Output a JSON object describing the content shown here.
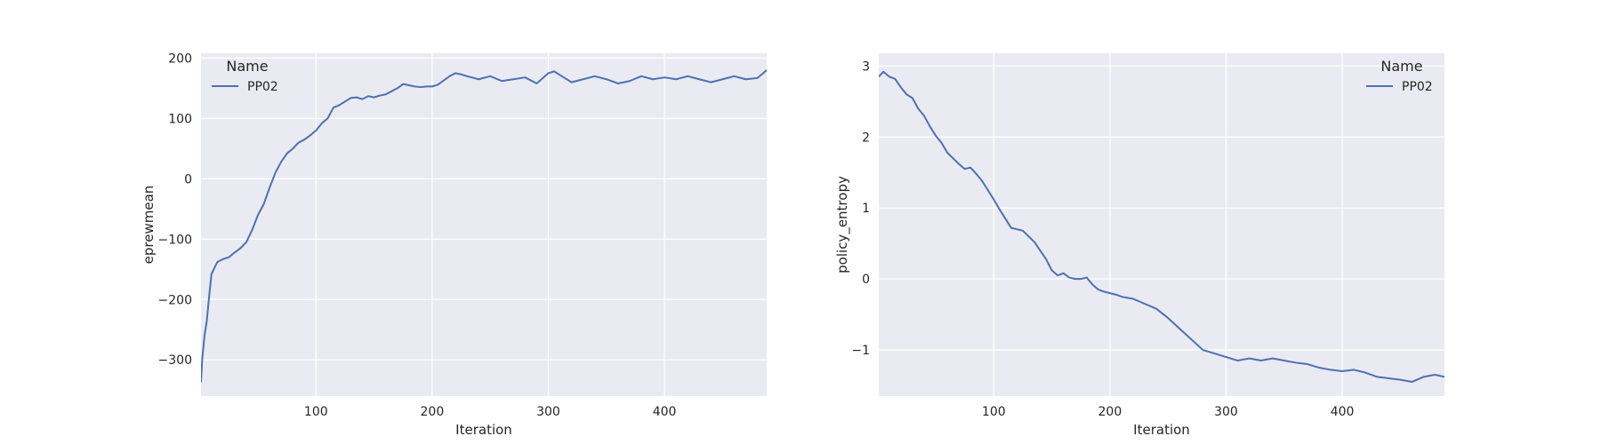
{
  "chart_data": [
    {
      "type": "line",
      "xlabel": "Iteration",
      "ylabel": "eprewmean",
      "xlim": [
        1,
        488
      ],
      "ylim": [
        -360,
        208
      ],
      "xticks": [
        100,
        200,
        300,
        400
      ],
      "yticks": [
        -300,
        -200,
        -100,
        0,
        100,
        200
      ],
      "grid": true,
      "legend": {
        "title": "Name",
        "placement": "top-left",
        "entries": [
          "PP02"
        ]
      },
      "series": [
        {
          "name": "PP02",
          "color": "#4c72b0",
          "x": [
            1,
            2,
            4,
            6,
            8,
            10,
            12,
            15,
            20,
            25,
            30,
            35,
            40,
            45,
            50,
            55,
            60,
            65,
            70,
            75,
            80,
            85,
            90,
            95,
            100,
            105,
            110,
            115,
            120,
            125,
            130,
            135,
            140,
            145,
            150,
            155,
            160,
            165,
            170,
            175,
            180,
            185,
            190,
            195,
            200,
            205,
            210,
            215,
            220,
            225,
            230,
            240,
            250,
            260,
            270,
            280,
            290,
            300,
            305,
            310,
            320,
            330,
            340,
            350,
            360,
            370,
            380,
            390,
            400,
            410,
            420,
            430,
            440,
            450,
            460,
            470,
            480,
            488
          ],
          "y": [
            -337,
            -300,
            -260,
            -235,
            -195,
            -158,
            -150,
            -138,
            -133,
            -130,
            -122,
            -115,
            -105,
            -85,
            -60,
            -42,
            -15,
            10,
            28,
            42,
            50,
            60,
            65,
            72,
            80,
            92,
            100,
            118,
            122,
            128,
            134,
            135,
            132,
            137,
            135,
            138,
            140,
            145,
            150,
            157,
            155,
            153,
            152,
            153,
            153,
            156,
            163,
            170,
            175,
            173,
            170,
            165,
            170,
            162,
            165,
            168,
            158,
            175,
            178,
            172,
            160,
            165,
            170,
            165,
            158,
            162,
            170,
            165,
            168,
            165,
            170,
            165,
            160,
            165,
            170,
            165,
            167,
            180
          ]
        }
      ]
    },
    {
      "type": "line",
      "xlabel": "Iteration",
      "ylabel": "policy_entropy",
      "xlim": [
        1,
        488
      ],
      "ylim": [
        -1.65,
        3.18
      ],
      "xticks": [
        100,
        200,
        300,
        400
      ],
      "yticks": [
        -1,
        0,
        1,
        2,
        3
      ],
      "grid": true,
      "legend": {
        "title": "Name",
        "placement": "top-right",
        "entries": [
          "PP02"
        ]
      },
      "series": [
        {
          "name": "PP02",
          "color": "#4c72b0",
          "x": [
            1,
            5,
            10,
            15,
            20,
            25,
            30,
            35,
            40,
            45,
            50,
            55,
            60,
            65,
            70,
            75,
            80,
            85,
            90,
            95,
            100,
            105,
            110,
            115,
            120,
            125,
            130,
            135,
            140,
            145,
            150,
            155,
            160,
            165,
            170,
            175,
            180,
            185,
            190,
            195,
            200,
            205,
            210,
            220,
            230,
            240,
            250,
            260,
            270,
            280,
            290,
            300,
            310,
            320,
            330,
            340,
            350,
            360,
            370,
            380,
            390,
            400,
            410,
            420,
            430,
            440,
            450,
            460,
            470,
            480,
            488
          ],
          "y": [
            2.85,
            2.92,
            2.85,
            2.82,
            2.7,
            2.6,
            2.55,
            2.4,
            2.3,
            2.15,
            2.02,
            1.92,
            1.78,
            1.7,
            1.62,
            1.55,
            1.57,
            1.48,
            1.38,
            1.25,
            1.12,
            0.98,
            0.85,
            0.72,
            0.7,
            0.68,
            0.6,
            0.52,
            0.4,
            0.28,
            0.12,
            0.05,
            0.08,
            0.02,
            0.0,
            0.0,
            0.02,
            -0.08,
            -0.15,
            -0.18,
            -0.2,
            -0.22,
            -0.25,
            -0.28,
            -0.35,
            -0.42,
            -0.55,
            -0.7,
            -0.85,
            -1.0,
            -1.05,
            -1.1,
            -1.15,
            -1.12,
            -1.15,
            -1.12,
            -1.15,
            -1.18,
            -1.2,
            -1.25,
            -1.28,
            -1.3,
            -1.28,
            -1.32,
            -1.38,
            -1.4,
            -1.42,
            -1.45,
            -1.38,
            -1.35,
            -1.38
          ]
        }
      ]
    }
  ]
}
